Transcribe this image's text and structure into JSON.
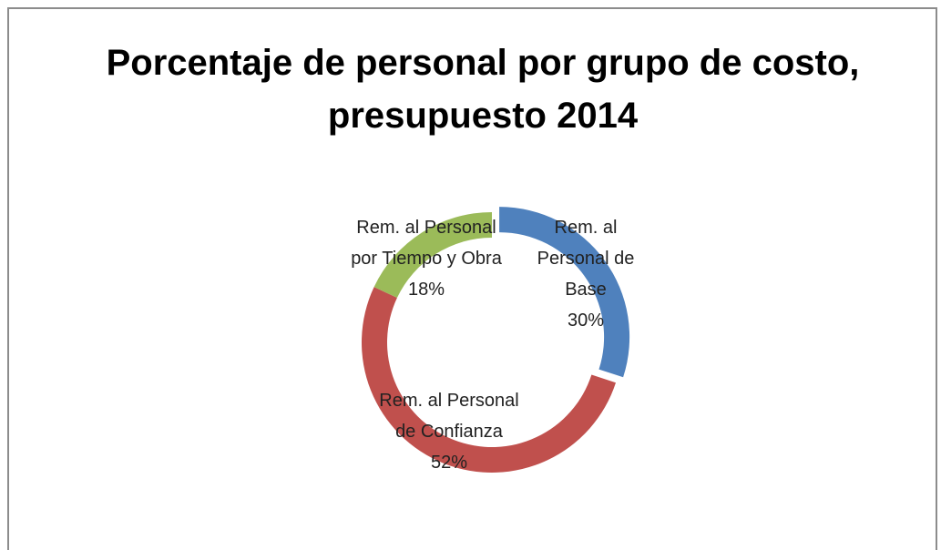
{
  "chart_data": {
    "type": "donut",
    "title": "Porcentaje de personal por grupo de costo, presupuesto 2014",
    "categories": [
      "Rem. al Personal de Base",
      "Rem. al Personal de Confianza",
      "Rem. al Personal por Tiempo y Obra"
    ],
    "values": [
      30,
      52,
      18
    ],
    "value_labels": [
      "30%",
      "52%",
      "18%"
    ],
    "colors": [
      "#4f81bd",
      "#c0504d",
      "#9bbb59"
    ]
  }
}
